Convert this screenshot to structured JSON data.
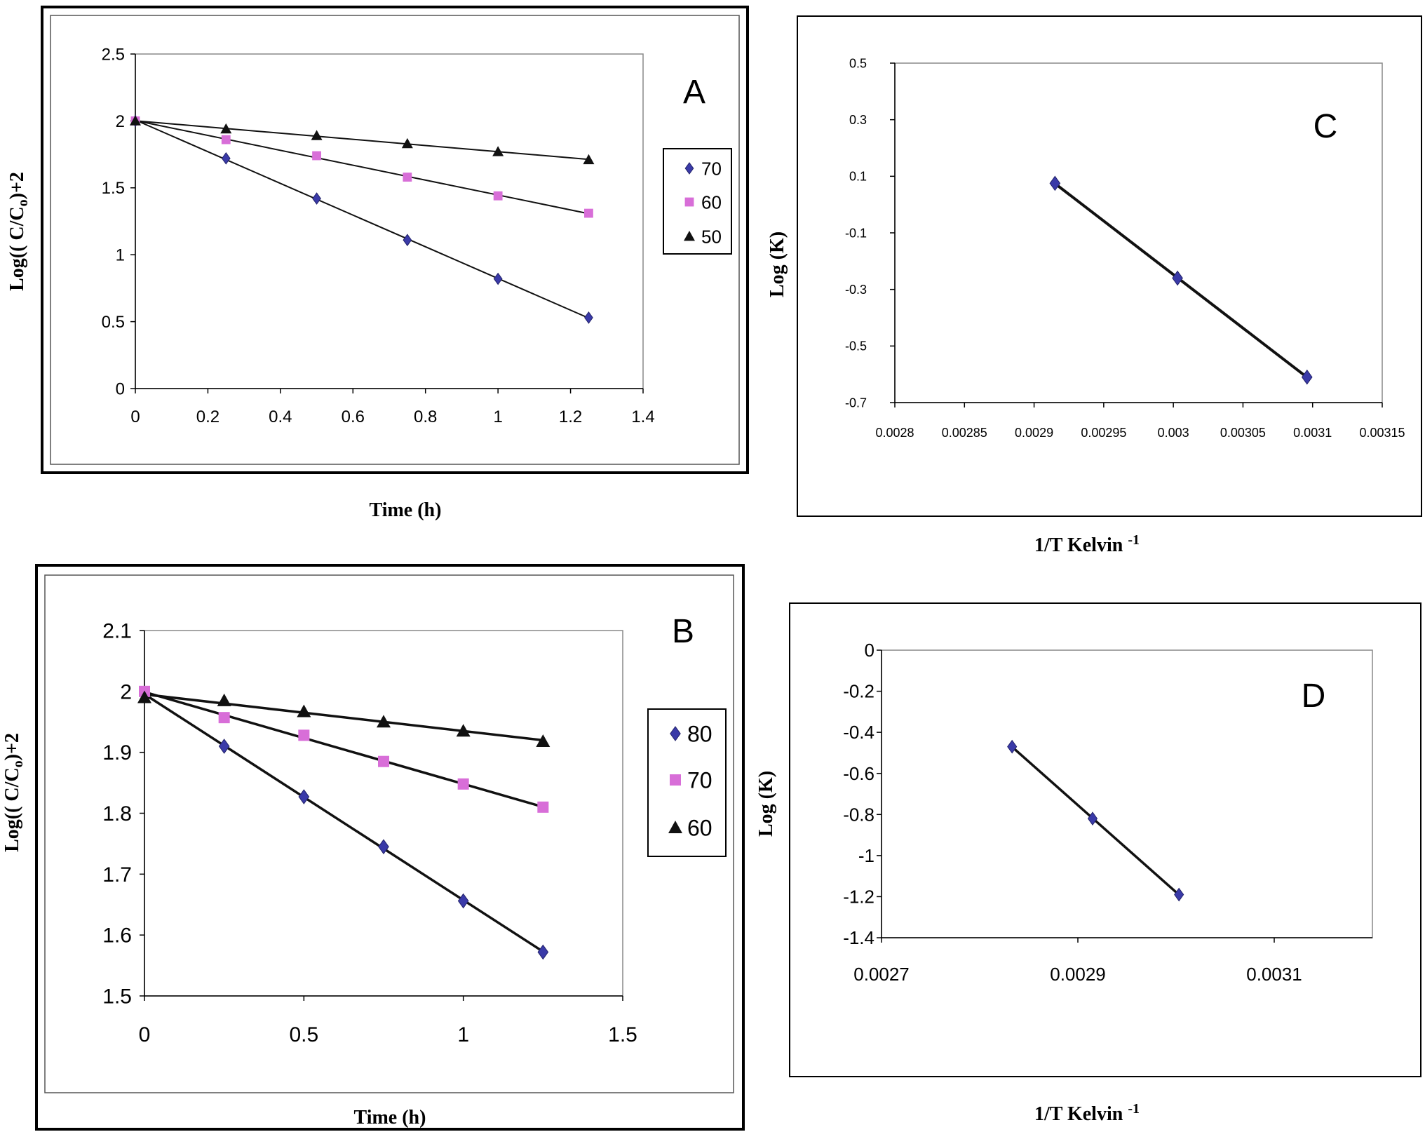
{
  "chart_data": [
    {
      "id": "A",
      "type": "scatter",
      "panel_letter": "A",
      "xlabel": "Time (h)",
      "ylabel_main": "Log(( C/C",
      "ylabel_sub": "o",
      "ylabel_tail": ")+2",
      "xlim": [
        0,
        1.4
      ],
      "ylim": [
        0,
        2.5
      ],
      "x_ticks": [
        "0",
        "0.2",
        "0.4",
        "0.6",
        "0.8",
        "1",
        "1.2",
        "1.4"
      ],
      "y_ticks": [
        "0",
        "0.5",
        "1",
        "1.5",
        "2",
        "2.5"
      ],
      "legend_position": "right",
      "series": [
        {
          "name": "70",
          "marker": "diamond",
          "color": "#3a3aa8",
          "x": [
            0,
            0.25,
            0.5,
            0.75,
            1,
            1.25
          ],
          "y": [
            2.0,
            1.72,
            1.42,
            1.11,
            0.82,
            0.53
          ]
        },
        {
          "name": "60",
          "marker": "square",
          "color": "#d86ed8",
          "x": [
            0,
            0.25,
            0.5,
            0.75,
            1,
            1.25
          ],
          "y": [
            2.0,
            1.86,
            1.74,
            1.58,
            1.44,
            1.31
          ]
        },
        {
          "name": "50",
          "marker": "triangle",
          "color": "#111111",
          "x": [
            0,
            0.25,
            0.5,
            0.75,
            1,
            1.25
          ],
          "y": [
            2.0,
            1.94,
            1.89,
            1.83,
            1.77,
            1.71
          ]
        }
      ]
    },
    {
      "id": "B",
      "type": "scatter",
      "panel_letter": "B",
      "xlabel": "Time (h)",
      "ylabel_main": "Log(( C/C",
      "ylabel_sub": "o",
      "ylabel_tail": ")+2",
      "xlim": [
        0,
        1.5
      ],
      "ylim": [
        1.5,
        2.1
      ],
      "x_ticks": [
        "0",
        "0.5",
        "1",
        "1.5"
      ],
      "y_ticks": [
        "1.5",
        "1.6",
        "1.7",
        "1.8",
        "1.9",
        "2",
        "2.1"
      ],
      "legend_position": "right",
      "series": [
        {
          "name": "80",
          "marker": "diamond",
          "color": "#3a3aa8",
          "x": [
            0,
            0.25,
            0.5,
            0.75,
            1,
            1.25
          ],
          "y": [
            1.995,
            1.91,
            1.827,
            1.745,
            1.656,
            1.572
          ]
        },
        {
          "name": "70",
          "marker": "square",
          "color": "#d86ed8",
          "x": [
            0,
            0.25,
            0.5,
            0.75,
            1,
            1.25
          ],
          "y": [
            2.0,
            1.957,
            1.928,
            1.885,
            1.848,
            1.81
          ]
        },
        {
          "name": "60",
          "marker": "triangle",
          "color": "#111111",
          "x": [
            0,
            0.25,
            0.5,
            0.75,
            1,
            1.25
          ],
          "y": [
            1.99,
            1.985,
            1.967,
            1.95,
            1.935,
            1.918
          ]
        }
      ]
    },
    {
      "id": "C",
      "type": "scatter",
      "panel_letter": "C",
      "xlabel": "1/T Kelvin ",
      "xlabel_sup": "-1",
      "ylabel": "Log (K)",
      "xlim": [
        0.0028,
        0.00315
      ],
      "ylim": [
        -0.7,
        0.5
      ],
      "x_ticks": [
        "0.0028",
        "0.00285",
        "0.0029",
        "0.00295",
        "0.003",
        "0.00305",
        "0.0031",
        "0.00315"
      ],
      "y_ticks": [
        "-0.7",
        "-0.5",
        "-0.3",
        "-0.1",
        "0.1",
        "0.3",
        "0.5"
      ],
      "series": [
        {
          "name": "Log K",
          "marker": "diamond",
          "color": "#3a3aa8",
          "x": [
            0.002915,
            0.003003,
            0.003096
          ],
          "y": [
            0.075,
            -0.26,
            -0.61
          ]
        }
      ]
    },
    {
      "id": "D",
      "type": "scatter",
      "panel_letter": "D",
      "xlabel": "1/T Kelvin ",
      "xlabel_sup": "-1",
      "ylabel": "Log (K)",
      "xlim": [
        0.0027,
        0.0032
      ],
      "ylim": [
        -1.4,
        0
      ],
      "x_ticks": [
        "0.0027",
        "0.0029",
        "0.0031"
      ],
      "x_tick_values": [
        0.0027,
        0.0029,
        0.0031
      ],
      "y_ticks": [
        "-1.4",
        "-1.2",
        "-1",
        "-0.8",
        "-0.6",
        "-0.4",
        "-0.2",
        "0"
      ],
      "series": [
        {
          "name": "Log K",
          "marker": "diamond",
          "color": "#3a3aa8",
          "x": [
            0.002833,
            0.002915,
            0.003003
          ],
          "y": [
            -0.47,
            -0.82,
            -1.19
          ]
        }
      ]
    }
  ]
}
